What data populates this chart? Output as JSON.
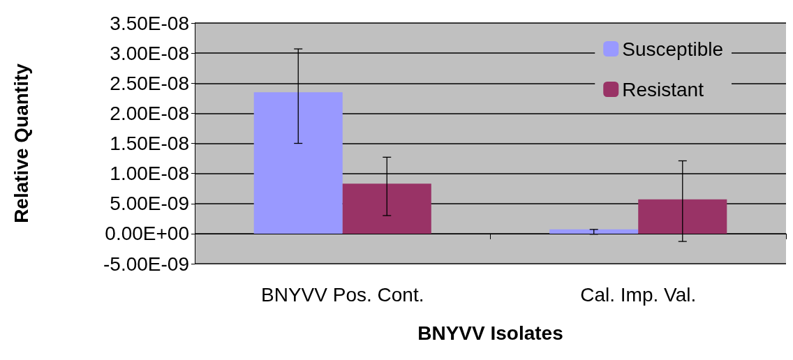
{
  "chart_data": {
    "type": "bar",
    "xlabel": "BNYVV Isolates",
    "ylabel": "Relative Quantity",
    "categories": [
      "BNYVV Pos. Cont.",
      "Cal. Imp. Val."
    ],
    "series": [
      {
        "name": "Susceptible",
        "color": "#9999ff",
        "values": [
          2.35e-08,
          7e-10
        ],
        "errors": [
          [
            1.5e-08,
            3.07e-08
          ],
          [
            -1e-10,
            7e-10
          ]
        ]
      },
      {
        "name": "Resistant",
        "color": "#993366",
        "values": [
          8.3e-09,
          5.7e-09
        ],
        "errors": [
          [
            3e-09,
            1.27e-08
          ],
          [
            -1.3e-09,
            1.21e-08
          ]
        ]
      }
    ],
    "ylim": [
      -5e-09,
      3.5e-08
    ],
    "yticks": [
      {
        "value": -5e-09,
        "label": "-5.00E-09"
      },
      {
        "value": 0,
        "label": "0.00E+00"
      },
      {
        "value": 5e-09,
        "label": "5.00E-09"
      },
      {
        "value": 1e-08,
        "label": "1.00E-08"
      },
      {
        "value": 1.5e-08,
        "label": "1.50E-08"
      },
      {
        "value": 2e-08,
        "label": "2.00E-08"
      },
      {
        "value": 2.5e-08,
        "label": "2.50E-08"
      },
      {
        "value": 3e-08,
        "label": "3.00E-08"
      },
      {
        "value": 3.5e-08,
        "label": "3.50E-08"
      }
    ],
    "grid": "y",
    "legend": "top right"
  }
}
